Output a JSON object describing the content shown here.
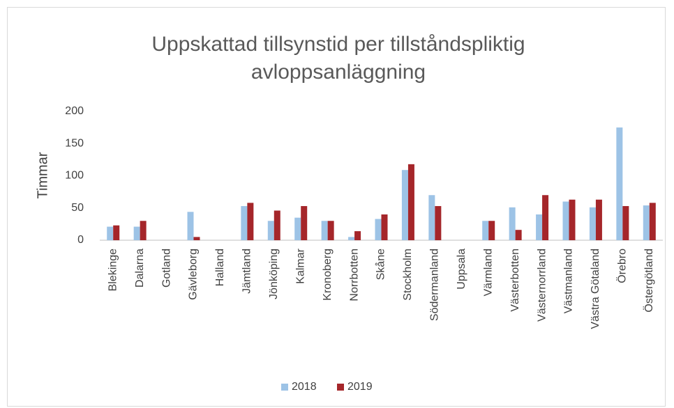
{
  "chart_data": {
    "type": "bar",
    "title": "Uppskattad tillsynstid per tillståndspliktig avloppsanläggning",
    "ylabel": "Timmar",
    "categories": [
      "Blekinge",
      "Dalarna",
      "Gotland",
      "Gävleborg",
      "Halland",
      "Jämtland",
      "Jönköping",
      "Kalmar",
      "Kronoberg",
      "Norrbotten",
      "Skåne",
      "Stockholm",
      "Södermanland",
      "Uppsala",
      "Värmland",
      "Västerbotten",
      "Västernorrland",
      "Västmanland",
      "Västra Götaland",
      "Örebro",
      "Östergötland"
    ],
    "series": [
      {
        "name": "2018",
        "color": "#9dc3e6",
        "values": [
          21,
          21,
          0,
          44,
          0,
          53,
          30,
          35,
          30,
          5,
          33,
          109,
          70,
          0,
          30,
          51,
          40,
          60,
          51,
          175,
          54
        ]
      },
      {
        "name": "2019",
        "color": "#a5262a",
        "values": [
          23,
          30,
          0,
          5,
          0,
          58,
          46,
          53,
          30,
          14,
          40,
          118,
          53,
          0,
          30,
          16,
          70,
          63,
          63,
          53,
          58
        ]
      }
    ],
    "ylim": [
      0,
      200
    ],
    "yticks": [
      0,
      50,
      100,
      150,
      200
    ],
    "grid": false,
    "legend": "bottom"
  }
}
